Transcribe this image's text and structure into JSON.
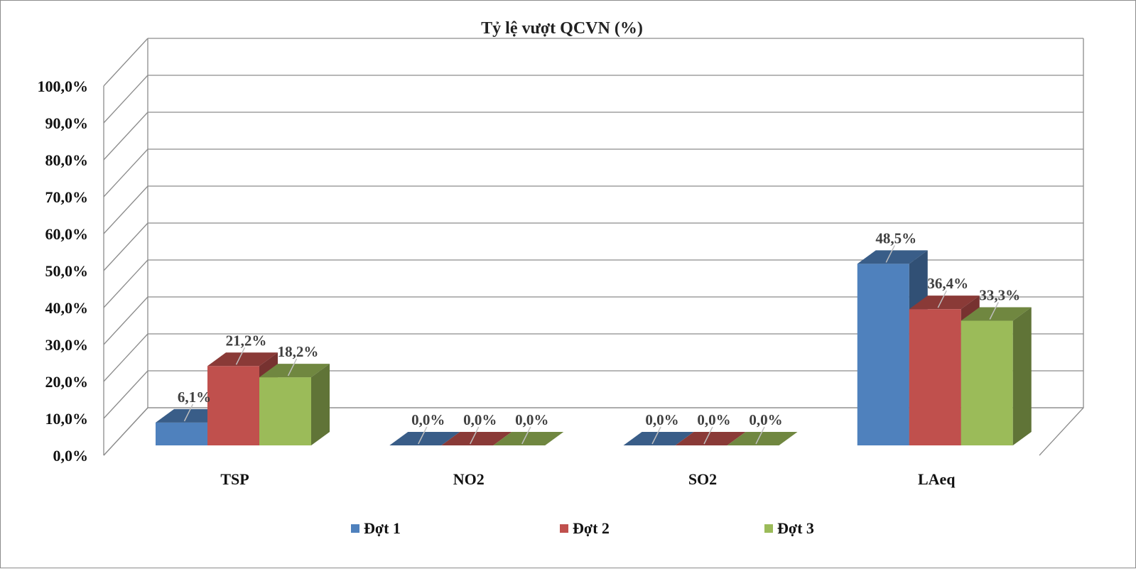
{
  "chart_data": {
    "type": "bar",
    "title": "Tỷ lệ vượt QCVN (%)",
    "categories": [
      "TSP",
      "NO2",
      "SO2",
      "LAeq"
    ],
    "series": [
      {
        "name": "Đợt 1",
        "color": "#4f81bd",
        "values": [
          6.1,
          0.0,
          0.0,
          48.5
        ],
        "labels": [
          "6,1%",
          "0,0%",
          "0,0%",
          "48,5%"
        ]
      },
      {
        "name": "Đợt 2",
        "color": "#c0504d",
        "values": [
          21.2,
          0.0,
          0.0,
          36.4
        ],
        "labels": [
          "21,2%",
          "0,0%",
          "0,0%",
          "36,4%"
        ]
      },
      {
        "name": "Đợt 3",
        "color": "#9bbb59",
        "values": [
          18.2,
          0.0,
          0.0,
          33.3
        ],
        "labels": [
          "18,2%",
          "0,0%",
          "0,0%",
          "33,3%"
        ]
      }
    ],
    "ylim": [
      0,
      100
    ],
    "yticks": [
      0,
      10,
      20,
      30,
      40,
      50,
      60,
      70,
      80,
      90,
      100
    ],
    "ytick_labels": [
      "0,0%",
      "10,0%",
      "20,0%",
      "30,0%",
      "40,0%",
      "50,0%",
      "60,0%",
      "70,0%",
      "80,0%",
      "90,0%",
      "100,0%"
    ],
    "grid": true,
    "three_d": true,
    "legend_position": "bottom"
  }
}
